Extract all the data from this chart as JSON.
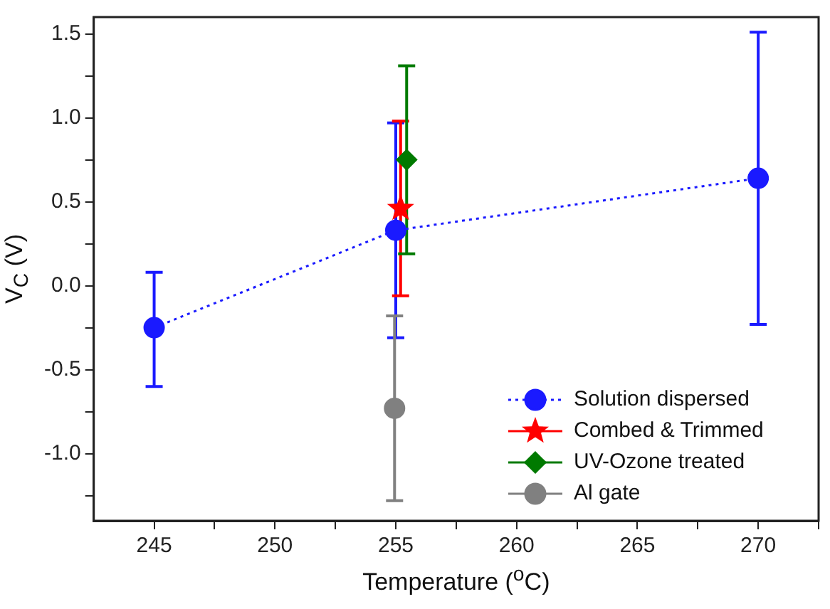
{
  "chart_data": {
    "type": "scatter",
    "xlabel": "Temperature ($^{o}$C)",
    "ylabel": "V$_{C}$ (V)",
    "xlim": [
      242.5,
      272.5
    ],
    "ylim": [
      -1.4,
      1.6
    ],
    "xticks": [
      245,
      {
        "value": 247.5,
        "label": null
      },
      250,
      {
        "value": 252.5,
        "label": null
      },
      255,
      {
        "value": 257.5,
        "label": null
      },
      260,
      {
        "value": 262.5,
        "label": null
      },
      265,
      {
        "value": 267.5,
        "label": null
      },
      270,
      {
        "value": 272.5,
        "label": null
      }
    ],
    "yticks": [
      {
        "value": -1.25,
        "label": null
      },
      {
        "value": -1,
        "label": "-1.0"
      },
      {
        "value": -0.75,
        "label": null
      },
      -0.5,
      {
        "value": -0.25,
        "label": null
      },
      {
        "value": 0,
        "label": "0.0"
      },
      {
        "value": 0.25,
        "label": null
      },
      0.5,
      {
        "value": 0.75,
        "label": null
      },
      {
        "value": 1,
        "label": "1.0"
      },
      {
        "value": 1.25,
        "label": null
      },
      1.5
    ],
    "legend": "bottom right",
    "grid": false,
    "series": [
      {
        "name": "Solution dispersed",
        "type": "line",
        "marker": "circle",
        "line_style": "dotted",
        "color": "#1a1aff",
        "x": [
          245,
          255,
          270
        ],
        "values": [
          -0.25,
          0.33,
          0.64
        ],
        "errors": [
          [
            -0.6,
            0.08
          ],
          [
            -0.31,
            0.97
          ],
          [
            -0.23,
            1.51
          ]
        ]
      },
      {
        "name": "Combed & Trimmed",
        "type": "scatter",
        "marker": "star",
        "color": "#ff0000",
        "x": [
          255.2
        ],
        "values": [
          0.46
        ],
        "errors": [
          [
            -0.06,
            0.98
          ]
        ]
      },
      {
        "name": "UV-Ozone treated",
        "type": "scatter",
        "marker": "diamond",
        "color": "#007a00",
        "x": [
          255.45
        ],
        "values": [
          0.75
        ],
        "errors": [
          [
            0.19,
            1.31
          ]
        ]
      },
      {
        "name": "Al gate",
        "type": "scatter",
        "marker": "circle",
        "color": "#808080",
        "x": [
          254.95
        ],
        "values": [
          -0.73
        ],
        "errors": [
          [
            -1.28,
            -0.18
          ]
        ]
      }
    ]
  }
}
